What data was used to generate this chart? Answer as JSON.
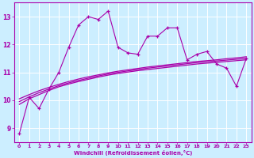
{
  "xlabel": "Windchill (Refroidissement éolien,°C)",
  "background_color": "#cceeff",
  "line_color": "#aa00aa",
  "xlim": [
    -0.5,
    23.5
  ],
  "ylim": [
    8.5,
    13.5
  ],
  "yticks": [
    9,
    10,
    11,
    12,
    13
  ],
  "xticks": [
    0,
    1,
    2,
    3,
    4,
    5,
    6,
    7,
    8,
    9,
    10,
    11,
    12,
    13,
    14,
    15,
    16,
    17,
    18,
    19,
    20,
    21,
    22,
    23
  ],
  "main_line": {
    "x": [
      0,
      1,
      2,
      3,
      4,
      5,
      6,
      7,
      8,
      9,
      10,
      11,
      12,
      13,
      14,
      15,
      16,
      17,
      18,
      19,
      20,
      21,
      22,
      23
    ],
    "y": [
      8.8,
      10.1,
      9.7,
      10.4,
      11.0,
      11.9,
      12.7,
      13.0,
      12.9,
      13.2,
      11.9,
      11.7,
      11.65,
      12.3,
      12.3,
      12.6,
      12.6,
      11.45,
      11.65,
      11.75,
      11.3,
      11.15,
      10.5,
      11.5
    ]
  },
  "smooth_lines": [
    {
      "x": [
        0,
        1,
        2,
        3,
        4,
        5,
        6,
        7,
        8,
        9,
        10,
        11,
        12,
        13,
        14,
        15,
        16,
        17,
        18,
        19,
        20,
        21,
        22,
        23
      ],
      "y": [
        9.85,
        10.05,
        10.2,
        10.35,
        10.48,
        10.58,
        10.67,
        10.75,
        10.83,
        10.9,
        10.96,
        11.01,
        11.06,
        11.1,
        11.14,
        11.18,
        11.22,
        11.26,
        11.3,
        11.33,
        11.36,
        11.39,
        11.42,
        11.45
      ]
    },
    {
      "x": [
        0,
        1,
        2,
        3,
        4,
        5,
        6,
        7,
        8,
        9,
        10,
        11,
        12,
        13,
        14,
        15,
        16,
        17,
        18,
        19,
        20,
        21,
        22,
        23
      ],
      "y": [
        9.95,
        10.12,
        10.27,
        10.4,
        10.52,
        10.62,
        10.71,
        10.79,
        10.87,
        10.94,
        11.0,
        11.05,
        11.1,
        11.15,
        11.19,
        11.23,
        11.27,
        11.31,
        11.35,
        11.38,
        11.41,
        11.44,
        11.47,
        11.5
      ]
    },
    {
      "x": [
        0,
        1,
        2,
        3,
        4,
        5,
        6,
        7,
        8,
        9,
        10,
        11,
        12,
        13,
        14,
        15,
        16,
        17,
        18,
        19,
        20,
        21,
        22,
        23
      ],
      "y": [
        10.05,
        10.2,
        10.34,
        10.46,
        10.57,
        10.67,
        10.76,
        10.84,
        10.91,
        10.98,
        11.04,
        11.09,
        11.14,
        11.19,
        11.23,
        11.27,
        11.31,
        11.35,
        11.39,
        11.42,
        11.45,
        11.49,
        11.52,
        11.56
      ]
    }
  ]
}
